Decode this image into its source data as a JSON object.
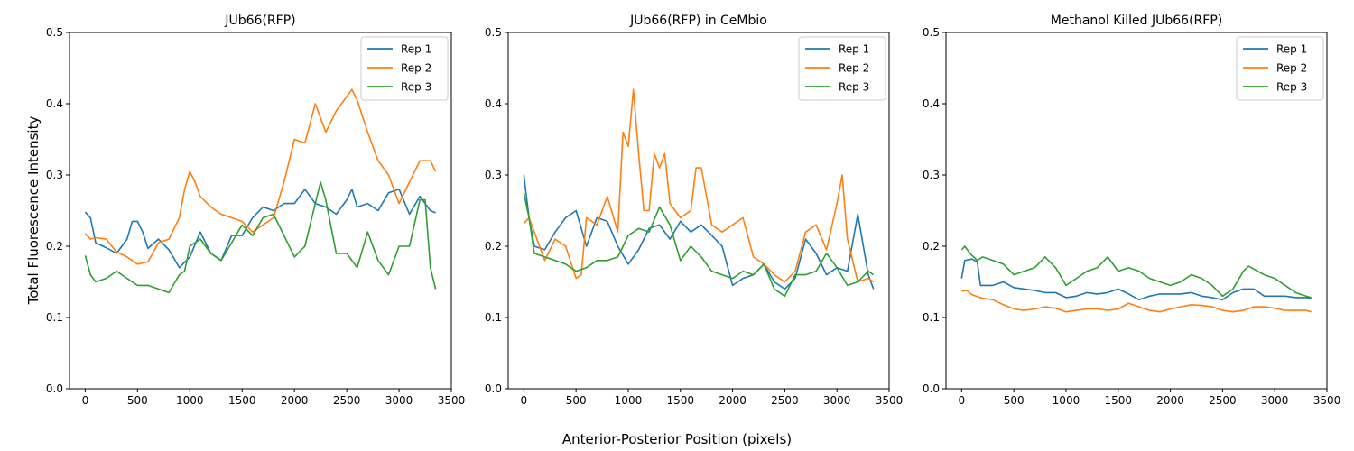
{
  "figure": {
    "ylabel": "Total Fluorescence Intensity",
    "xlabel": "Anterior-Posterior Position (pixels)"
  },
  "colors": {
    "Rep 1": "#1f77b4",
    "Rep 2": "#ff7f0e",
    "Rep 3": "#2ca02c"
  },
  "chart_data": [
    {
      "type": "line",
      "title": "JUb66(RFP)",
      "xlim": [
        -150,
        3500
      ],
      "ylim": [
        0,
        0.5
      ],
      "xticks": [
        0,
        500,
        1000,
        1500,
        2000,
        2500,
        3000,
        3500
      ],
      "yticks": [
        0.0,
        0.1,
        0.2,
        0.3,
        0.4,
        0.5
      ],
      "legend": "top-right",
      "series": [
        {
          "name": "Rep 1",
          "x": [
            0,
            50,
            100,
            200,
            300,
            400,
            450,
            500,
            550,
            600,
            700,
            800,
            900,
            1000,
            1100,
            1200,
            1300,
            1400,
            1500,
            1600,
            1700,
            1800,
            1900,
            2000,
            2100,
            2200,
            2300,
            2400,
            2500,
            2550,
            2600,
            2700,
            2800,
            2900,
            3000,
            3100,
            3200,
            3300,
            3350
          ],
          "y": [
            0.248,
            0.24,
            0.205,
            0.198,
            0.19,
            0.21,
            0.235,
            0.235,
            0.22,
            0.197,
            0.21,
            0.195,
            0.17,
            0.185,
            0.22,
            0.19,
            0.18,
            0.215,
            0.215,
            0.24,
            0.255,
            0.25,
            0.26,
            0.26,
            0.28,
            0.26,
            0.255,
            0.245,
            0.265,
            0.28,
            0.255,
            0.26,
            0.25,
            0.275,
            0.28,
            0.245,
            0.27,
            0.25,
            0.247
          ]
        },
        {
          "name": "Rep 2",
          "x": [
            0,
            50,
            100,
            200,
            300,
            400,
            500,
            600,
            700,
            800,
            900,
            950,
            1000,
            1050,
            1100,
            1200,
            1300,
            1400,
            1500,
            1600,
            1700,
            1800,
            1900,
            2000,
            2100,
            2200,
            2300,
            2400,
            2500,
            2550,
            2600,
            2700,
            2800,
            2900,
            3000,
            3100,
            3200,
            3300,
            3350
          ],
          "y": [
            0.218,
            0.21,
            0.212,
            0.21,
            0.192,
            0.185,
            0.175,
            0.178,
            0.205,
            0.21,
            0.24,
            0.28,
            0.305,
            0.29,
            0.27,
            0.255,
            0.245,
            0.24,
            0.235,
            0.22,
            0.23,
            0.24,
            0.29,
            0.35,
            0.345,
            0.4,
            0.36,
            0.39,
            0.41,
            0.42,
            0.405,
            0.36,
            0.32,
            0.3,
            0.26,
            0.29,
            0.32,
            0.32,
            0.305
          ]
        },
        {
          "name": "Rep 3",
          "x": [
            0,
            50,
            100,
            200,
            300,
            400,
            500,
            600,
            700,
            800,
            900,
            950,
            1000,
            1050,
            1100,
            1200,
            1300,
            1400,
            1500,
            1600,
            1700,
            1800,
            1900,
            2000,
            2100,
            2200,
            2250,
            2300,
            2400,
            2500,
            2600,
            2700,
            2800,
            2900,
            3000,
            3100,
            3200,
            3250,
            3300,
            3350
          ],
          "y": [
            0.187,
            0.16,
            0.15,
            0.155,
            0.165,
            0.155,
            0.145,
            0.145,
            0.14,
            0.135,
            0.16,
            0.165,
            0.2,
            0.205,
            0.21,
            0.19,
            0.18,
            0.205,
            0.23,
            0.215,
            0.24,
            0.245,
            0.215,
            0.185,
            0.2,
            0.26,
            0.29,
            0.265,
            0.19,
            0.19,
            0.17,
            0.22,
            0.18,
            0.16,
            0.2,
            0.2,
            0.265,
            0.265,
            0.17,
            0.14
          ]
        }
      ]
    },
    {
      "type": "line",
      "title": "JUb66(RFP) in CeMbio",
      "xlim": [
        -150,
        3500
      ],
      "ylim": [
        0,
        0.5
      ],
      "xticks": [
        0,
        500,
        1000,
        1500,
        2000,
        2500,
        3000,
        3500
      ],
      "yticks": [
        0.0,
        0.1,
        0.2,
        0.3,
        0.4,
        0.5
      ],
      "legend": "top-right",
      "series": [
        {
          "name": "Rep 1",
          "x": [
            0,
            50,
            100,
            200,
            300,
            400,
            500,
            600,
            700,
            800,
            900,
            1000,
            1100,
            1200,
            1300,
            1400,
            1500,
            1600,
            1700,
            1800,
            1900,
            2000,
            2100,
            2200,
            2300,
            2400,
            2500,
            2600,
            2700,
            2800,
            2900,
            3000,
            3100,
            3200,
            3300,
            3350
          ],
          "y": [
            0.3,
            0.24,
            0.2,
            0.195,
            0.22,
            0.24,
            0.25,
            0.2,
            0.24,
            0.235,
            0.2,
            0.175,
            0.195,
            0.225,
            0.23,
            0.21,
            0.235,
            0.22,
            0.23,
            0.215,
            0.2,
            0.145,
            0.155,
            0.16,
            0.175,
            0.15,
            0.14,
            0.155,
            0.21,
            0.19,
            0.16,
            0.17,
            0.165,
            0.245,
            0.16,
            0.14
          ]
        },
        {
          "name": "Rep 2",
          "x": [
            0,
            50,
            100,
            200,
            300,
            400,
            500,
            550,
            600,
            700,
            800,
            900,
            950,
            1000,
            1050,
            1100,
            1150,
            1200,
            1250,
            1300,
            1350,
            1400,
            1500,
            1600,
            1650,
            1700,
            1800,
            1900,
            2000,
            2100,
            2200,
            2300,
            2400,
            2500,
            2600,
            2700,
            2800,
            2900,
            3000,
            3050,
            3100,
            3200,
            3300,
            3350
          ],
          "y": [
            0.232,
            0.24,
            0.22,
            0.18,
            0.21,
            0.2,
            0.155,
            0.16,
            0.24,
            0.23,
            0.27,
            0.22,
            0.36,
            0.34,
            0.42,
            0.33,
            0.25,
            0.25,
            0.33,
            0.31,
            0.33,
            0.26,
            0.24,
            0.25,
            0.31,
            0.31,
            0.23,
            0.22,
            0.23,
            0.24,
            0.185,
            0.175,
            0.16,
            0.15,
            0.165,
            0.22,
            0.23,
            0.195,
            0.26,
            0.3,
            0.21,
            0.15,
            0.155,
            0.15
          ]
        },
        {
          "name": "Rep 3",
          "x": [
            0,
            50,
            100,
            200,
            300,
            400,
            500,
            600,
            700,
            800,
            900,
            1000,
            1100,
            1200,
            1300,
            1400,
            1500,
            1600,
            1700,
            1800,
            1900,
            2000,
            2100,
            2200,
            2300,
            2400,
            2500,
            2600,
            2700,
            2800,
            2900,
            3000,
            3100,
            3200,
            3300,
            3350
          ],
          "y": [
            0.275,
            0.24,
            0.19,
            0.185,
            0.18,
            0.175,
            0.165,
            0.17,
            0.18,
            0.18,
            0.185,
            0.215,
            0.225,
            0.22,
            0.255,
            0.23,
            0.18,
            0.2,
            0.185,
            0.165,
            0.16,
            0.155,
            0.165,
            0.16,
            0.175,
            0.14,
            0.13,
            0.16,
            0.16,
            0.165,
            0.19,
            0.17,
            0.145,
            0.15,
            0.165,
            0.16
          ]
        }
      ]
    },
    {
      "type": "line",
      "title": "Methanol Killed JUb66(RFP)",
      "xlim": [
        -150,
        3500
      ],
      "ylim": [
        0,
        0.5
      ],
      "xticks": [
        0,
        500,
        1000,
        1500,
        2000,
        2500,
        3000,
        3500
      ],
      "yticks": [
        0.0,
        0.1,
        0.2,
        0.3,
        0.4,
        0.5
      ],
      "legend": "top-right",
      "series": [
        {
          "name": "Rep 1",
          "x": [
            0,
            30,
            100,
            150,
            180,
            200,
            300,
            400,
            500,
            600,
            700,
            800,
            900,
            1000,
            1100,
            1200,
            1300,
            1400,
            1500,
            1600,
            1700,
            1800,
            1900,
            2000,
            2100,
            2200,
            2300,
            2400,
            2500,
            2600,
            2700,
            2800,
            2900,
            3000,
            3100,
            3200,
            3300,
            3350
          ],
          "y": [
            0.155,
            0.18,
            0.182,
            0.178,
            0.145,
            0.145,
            0.145,
            0.15,
            0.142,
            0.14,
            0.138,
            0.135,
            0.135,
            0.128,
            0.13,
            0.135,
            0.133,
            0.135,
            0.14,
            0.133,
            0.125,
            0.13,
            0.133,
            0.133,
            0.133,
            0.135,
            0.13,
            0.128,
            0.125,
            0.135,
            0.14,
            0.14,
            0.13,
            0.13,
            0.13,
            0.128,
            0.128,
            0.127
          ]
        },
        {
          "name": "Rep 2",
          "x": [
            0,
            50,
            100,
            200,
            300,
            400,
            500,
            600,
            700,
            800,
            900,
            1000,
            1100,
            1200,
            1300,
            1400,
            1500,
            1600,
            1700,
            1800,
            1900,
            2000,
            2100,
            2200,
            2300,
            2400,
            2500,
            2600,
            2700,
            2800,
            2900,
            3000,
            3100,
            3200,
            3300,
            3350
          ],
          "y": [
            0.137,
            0.138,
            0.132,
            0.127,
            0.125,
            0.118,
            0.112,
            0.11,
            0.112,
            0.115,
            0.113,
            0.108,
            0.11,
            0.112,
            0.112,
            0.11,
            0.112,
            0.12,
            0.115,
            0.11,
            0.108,
            0.112,
            0.115,
            0.118,
            0.117,
            0.115,
            0.11,
            0.108,
            0.11,
            0.115,
            0.115,
            0.113,
            0.11,
            0.11,
            0.11,
            0.108
          ]
        },
        {
          "name": "Rep 3",
          "x": [
            0,
            30,
            80,
            150,
            200,
            300,
            400,
            500,
            600,
            700,
            800,
            900,
            1000,
            1100,
            1200,
            1300,
            1400,
            1500,
            1600,
            1700,
            1800,
            1900,
            2000,
            2100,
            2200,
            2300,
            2400,
            2500,
            2600,
            2700,
            2750,
            2800,
            2900,
            3000,
            3100,
            3200,
            3300,
            3350
          ],
          "y": [
            0.195,
            0.2,
            0.19,
            0.18,
            0.185,
            0.18,
            0.175,
            0.16,
            0.165,
            0.17,
            0.185,
            0.17,
            0.145,
            0.155,
            0.165,
            0.17,
            0.185,
            0.165,
            0.17,
            0.165,
            0.155,
            0.15,
            0.145,
            0.15,
            0.16,
            0.155,
            0.145,
            0.13,
            0.14,
            0.165,
            0.172,
            0.168,
            0.16,
            0.155,
            0.145,
            0.135,
            0.13,
            0.128
          ]
        }
      ]
    }
  ]
}
